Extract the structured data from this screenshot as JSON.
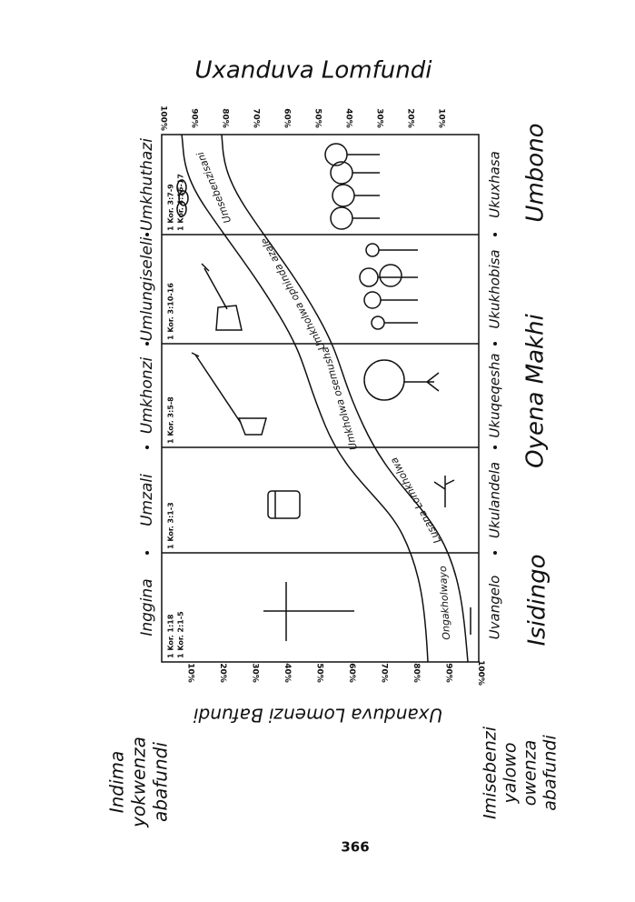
{
  "title": "Uxanduva Lomfundi",
  "roles": [
    "Inggina",
    "Umzali",
    "Umkhonzi",
    "Umlungiseleli",
    "Umkhuthazi"
  ],
  "activities": [
    "Uvangelo",
    "Ukulandela",
    "Ukuqeqesha",
    "Ukukhobisa",
    "Ukuxhasa"
  ],
  "references": [
    [
      "1 Kor. 1:18",
      "1 Kor. 2:1-5"
    ],
    [
      "1 Kor. 3:1-3"
    ],
    [
      "1 Kor. 3:5-8"
    ],
    [
      "1 Kor. 3:10-16"
    ],
    [
      "1 Kor. 3:7-9",
      "1 Kor. 4:16-17"
    ]
  ],
  "stages": [
    "Ongakholwayo",
    "Lusana Lomkholwa",
    "Umkholwa osemusha",
    "Umkholwa ophinda azale",
    "Umsebenzisani"
  ],
  "top_scale": [
    "100%",
    "90%",
    "80%",
    "70%",
    "60%",
    "50%",
    "40%",
    "30%",
    "20%",
    "10%"
  ],
  "bottom_scale": [
    "10%",
    "20%",
    "30%",
    "40%",
    "50%",
    "60%",
    "70%",
    "80%",
    "90%",
    "100%"
  ],
  "axis_caption": "Uxanduva Lomenzi Bafundi",
  "bottom_labels": [
    "Isidingo",
    "Oyena Makhi",
    "Umbono"
  ],
  "side_notes": {
    "left": [
      "Indima",
      "yokwenza",
      "abafundi"
    ],
    "right": [
      "Imisebenzi",
      "yalowo",
      "owenza",
      "abafundi"
    ]
  },
  "page_number": "366"
}
